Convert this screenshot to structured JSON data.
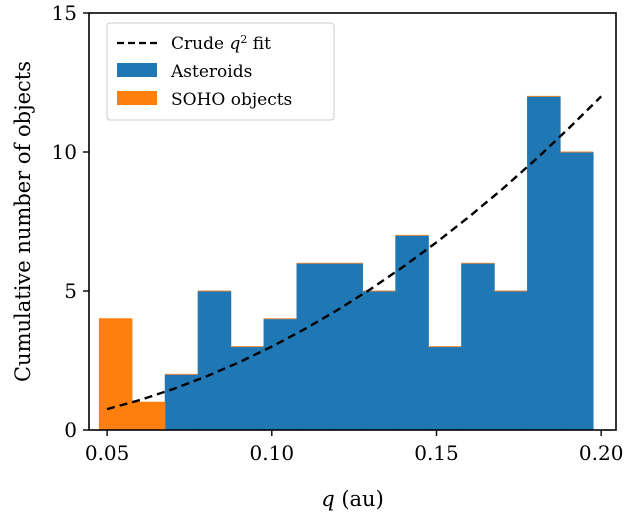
{
  "chart_data": {
    "type": "bar",
    "xlabel": "q (au)",
    "ylabel": "Cumulative number of objects",
    "xlim": [
      0.0445,
      0.2045
    ],
    "ylim": [
      0,
      15
    ],
    "xticks": [
      0.05,
      0.1,
      0.15,
      0.2
    ],
    "xtick_labels": [
      "0.05",
      "0.10",
      "0.15",
      "0.20"
    ],
    "yticks": [
      0,
      5,
      10,
      15
    ],
    "ytick_labels": [
      "0",
      "5",
      "10",
      "15"
    ],
    "grid": false,
    "legend": {
      "position": "top-left",
      "entries": [
        {
          "label": "Crude q² fit",
          "label_text": "Crude ",
          "label_var": "q",
          "label_sup": "2",
          "label_tail": " fit",
          "style": "dashed-line",
          "color": "#000000"
        },
        {
          "label": "Asteroids",
          "style": "patch",
          "color": "#1f77b4"
        },
        {
          "label": "SOHO objects",
          "style": "patch",
          "color": "#ff7f0e"
        }
      ]
    },
    "series": [
      {
        "name": "Asteroids",
        "color": "#1f77b4",
        "bin_edges": [
          0.0475,
          0.0575,
          0.0675,
          0.0775,
          0.0875,
          0.0975,
          0.1075,
          0.1175,
          0.1275,
          0.1375,
          0.1475,
          0.1575,
          0.1675,
          0.1775,
          0.1875,
          0.1975
        ],
        "values": [
          0,
          0,
          2,
          5,
          3,
          4,
          6,
          6,
          5,
          7,
          3,
          6,
          5,
          12,
          10
        ]
      },
      {
        "name": "SOHO objects",
        "color": "#ff7f0e",
        "bin_edges": [
          0.0475,
          0.0575,
          0.0675
        ],
        "values": [
          4,
          1
        ]
      },
      {
        "name": "Crude q² fit",
        "type": "line",
        "color": "#000000",
        "x": [
          0.05,
          0.06,
          0.07,
          0.08,
          0.09,
          0.1,
          0.11,
          0.12,
          0.13,
          0.14,
          0.15,
          0.16,
          0.17,
          0.18,
          0.19,
          0.2
        ],
        "y": [
          0.75,
          1.08,
          1.47,
          1.92,
          2.43,
          3.0,
          3.63,
          4.32,
          5.07,
          5.88,
          6.75,
          7.68,
          8.67,
          9.72,
          10.83,
          12.0
        ]
      }
    ]
  }
}
